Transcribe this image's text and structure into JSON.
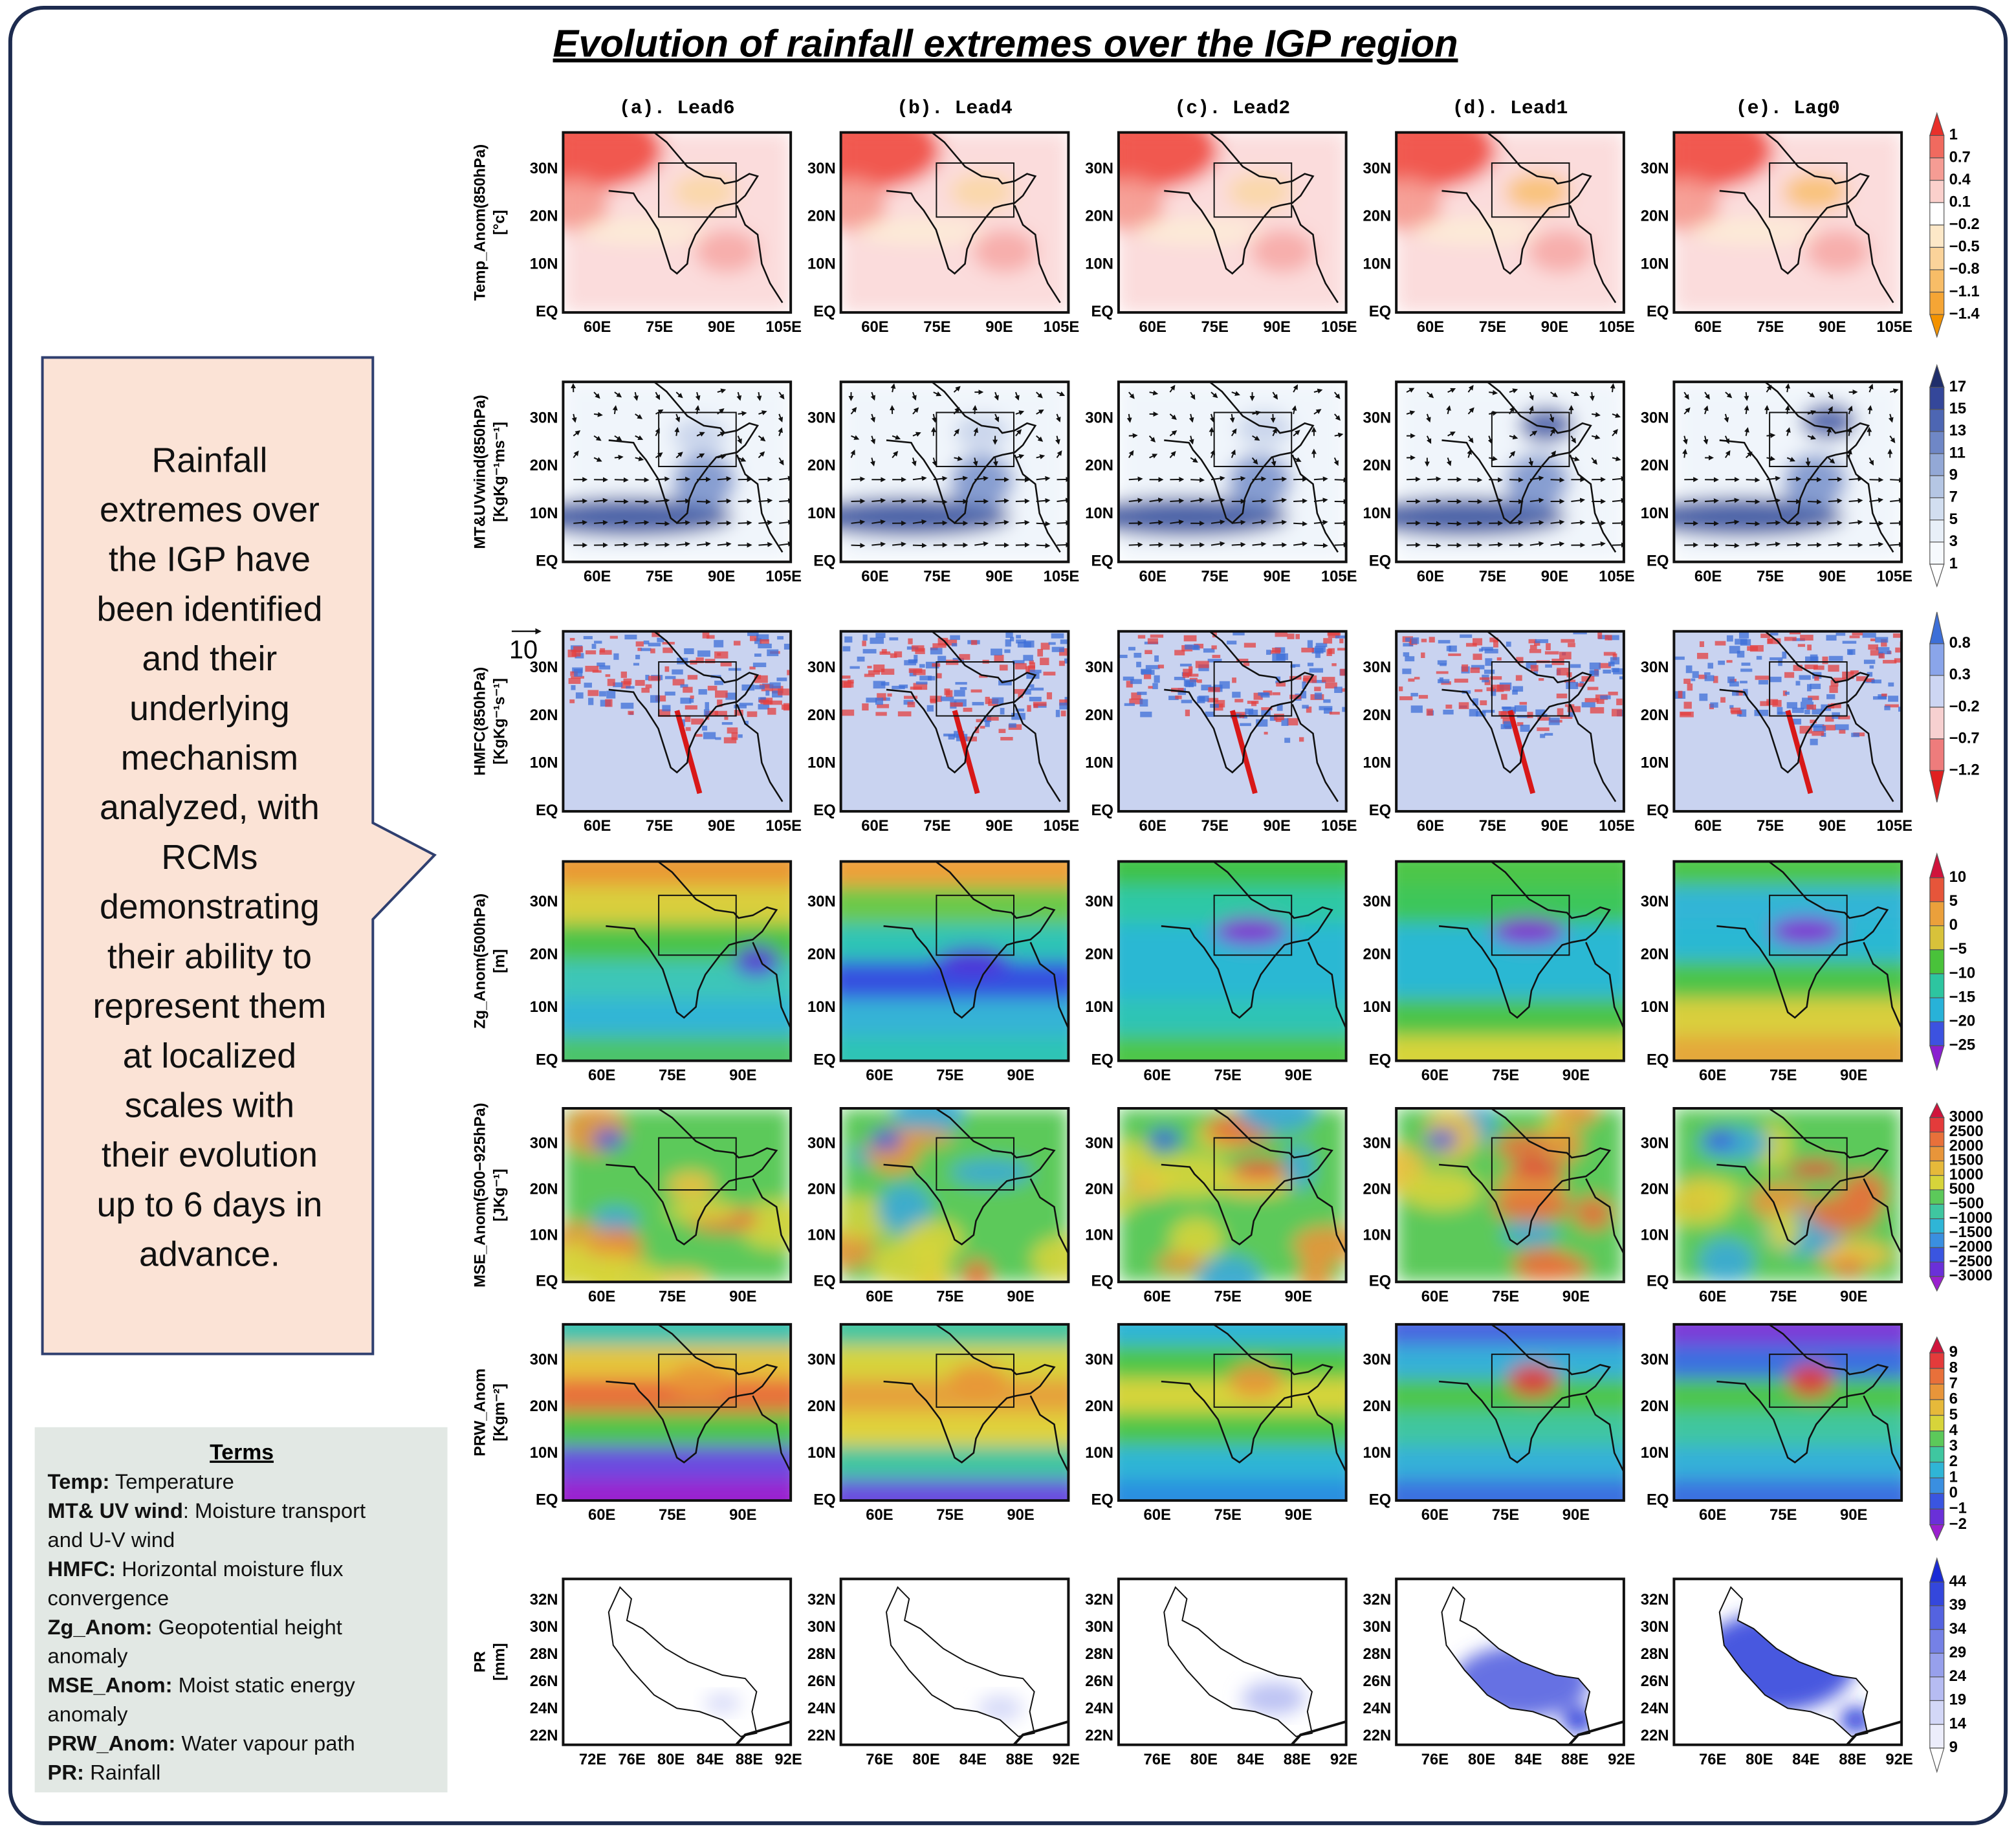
{
  "title": "Evolution of rainfall extremes over the IGP region",
  "columns": [
    "(a). Lead6",
    "(b). Lead4",
    "(c). Lead2",
    "(d). Lead1",
    "(e). Lag0"
  ],
  "rows": [
    {
      "label": [
        "Temp_Anom(850hPa)",
        "[°c]"
      ],
      "yticks": [
        "30N",
        "20N",
        "10N",
        "EQ"
      ],
      "xticks": [
        "60E",
        "75E",
        "90E",
        "105E"
      ],
      "colorbar": [
        "1",
        "0.7",
        "0.4",
        "0.1",
        "−0.2",
        "−0.5",
        "−0.8",
        "−1.1",
        "−1.4"
      ],
      "colors": [
        "#e8302a",
        "#f06a5f",
        "#f59c94",
        "#fbd0cc",
        "#ffffff",
        "#fde8c8",
        "#fbd39a",
        "#f8bd67",
        "#f5a535",
        "#f39200"
      ]
    },
    {
      "label": [
        "MT&UVwind(850hPa)",
        "[KgKg⁻¹ms⁻¹]"
      ],
      "yticks": [
        "30N",
        "20N",
        "10N",
        "EQ"
      ],
      "xticks": [
        "60E",
        "75E",
        "90E",
        "105E"
      ],
      "colorbar": [
        "17",
        "15",
        "13",
        "11",
        "9",
        "7",
        "5",
        "3",
        "1"
      ],
      "vector_ref": "10",
      "colors": [
        "#1f2e6b",
        "#34479a",
        "#4d66b3",
        "#6f87c6",
        "#93a8d6",
        "#b5c6e4",
        "#d2def0",
        "#e8eff8",
        "#f6f9fd",
        "#ffffff"
      ]
    },
    {
      "label": [
        "HMFC(850hPa)",
        "[KgKg⁻¹s⁻¹]"
      ],
      "yticks": [
        "30N",
        "20N",
        "10N",
        "EQ"
      ],
      "xticks": [
        "60E",
        "75E",
        "90E",
        "105E"
      ],
      "colorbar": [
        "0.8",
        "0.3",
        "−0.2",
        "−0.7",
        "−1.2"
      ],
      "colors": [
        "#3d6fd8",
        "#8aa5ea",
        "#cdd6f3",
        "#f7d0d0",
        "#ee7c7c",
        "#e02020"
      ]
    },
    {
      "label": [
        "Zg_Anom(500hPa)",
        "[m]"
      ],
      "yticks": [
        "30N",
        "20N",
        "10N",
        "EQ"
      ],
      "xticks": [
        "60E",
        "75E",
        "90E"
      ],
      "colorbar": [
        "10",
        "5",
        "0",
        "−5",
        "−10",
        "−15",
        "−20",
        "−25"
      ],
      "colors": [
        "#d0143c",
        "#e6553a",
        "#eba03b",
        "#d8c23a",
        "#49c23a",
        "#2dc5a0",
        "#28b2d8",
        "#3c52e0",
        "#8a1fd0"
      ]
    },
    {
      "label": [
        "MSE_Anom(500−925hPa)",
        "[JKg⁻¹]"
      ],
      "yticks": [
        "30N",
        "20N",
        "10N",
        "EQ"
      ],
      "xticks": [
        "60E",
        "75E",
        "90E"
      ],
      "colorbar": [
        "3000",
        "2500",
        "2000",
        "1500",
        "1000",
        "500",
        "−500",
        "−1000",
        "−1500",
        "−2000",
        "−2500",
        "−3000"
      ],
      "colors": [
        "#d0143c",
        "#e43b3b",
        "#e8703a",
        "#e8953a",
        "#e6b93a",
        "#d7d43a",
        "#5cc95a",
        "#3fc6a0",
        "#2fb5d6",
        "#3a8fe0",
        "#3a55e0",
        "#6a30d8",
        "#9a20cf"
      ]
    },
    {
      "label": [
        "PRW_Anom",
        "[Kgm⁻²]"
      ],
      "yticks": [
        "30N",
        "20N",
        "10N",
        "EQ"
      ],
      "xticks": [
        "60E",
        "75E",
        "90E"
      ],
      "colorbar": [
        "9",
        "8",
        "7",
        "6",
        "5",
        "4",
        "3",
        "2",
        "1",
        "0",
        "−1",
        "−2"
      ],
      "colors": [
        "#d0143c",
        "#e43b3b",
        "#e8703a",
        "#e8953a",
        "#e6b93a",
        "#d7d43a",
        "#5cc95a",
        "#3fc6a0",
        "#2fb5d6",
        "#3a8fe0",
        "#3a55e0",
        "#6a30d8",
        "#9a20cf"
      ]
    },
    {
      "label": [
        "PR",
        "[mm]"
      ],
      "yticks": [
        "32N",
        "30N",
        "28N",
        "26N",
        "24N",
        "22N"
      ],
      "xticks_a": [
        "72E",
        "76E",
        "80E",
        "84E",
        "88E",
        "92E"
      ],
      "xticks": [
        "76E",
        "80E",
        "84E",
        "88E",
        "92E"
      ],
      "colorbar": [
        "44",
        "39",
        "34",
        "29",
        "24",
        "19",
        "14",
        "9"
      ],
      "colors": [
        "#1a2bd6",
        "#3447dc",
        "#5463e0",
        "#7581e6",
        "#97a0ec",
        "#b6bcf2",
        "#d3d7f7",
        "#ecedfb",
        "#ffffff"
      ]
    }
  ],
  "summary": [
    "Rainfall",
    "extremes over",
    "the IGP have",
    "been identified",
    "and their",
    "underlying",
    "mechanism",
    "analyzed, with",
    "RCMs",
    "demonstrating",
    "their ability to",
    "represent them",
    "at localized",
    "scales with",
    "their evolution",
    "up to 6 days in",
    "advance."
  ],
  "terms": {
    "heading": "Terms",
    "items": [
      {
        "term": "Temp:",
        "desc": [
          " Temperature"
        ]
      },
      {
        "term": "MT& UV wind",
        "desc": [
          ": Moisture transport",
          "and U-V wind"
        ]
      },
      {
        "term": "HMFC:",
        "desc": [
          " Horizontal moisture flux",
          "convergence"
        ]
      },
      {
        "term": "Zg_Anom:",
        "desc": [
          " Geopotential height",
          "anomaly"
        ]
      },
      {
        "term": "MSE_Anom:",
        "desc": [
          " Moist static energy",
          "anomaly"
        ]
      },
      {
        "term": "PRW_Anom:",
        "desc": [
          " Water vapour path"
        ]
      },
      {
        "term": "PR:",
        "desc": [
          " Rainfall"
        ]
      }
    ]
  }
}
